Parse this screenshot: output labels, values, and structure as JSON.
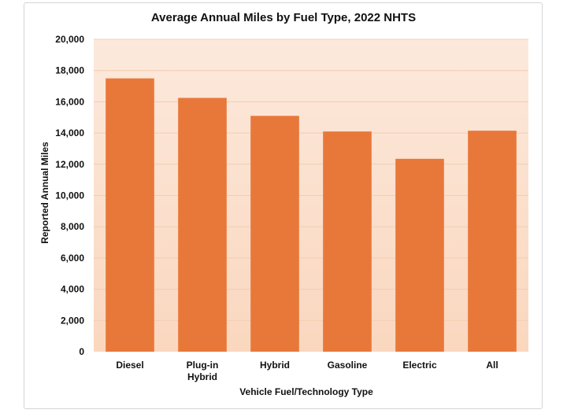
{
  "chart_data": {
    "type": "bar",
    "title": "Average Annual Miles by Fuel Type, 2022 NHTS",
    "xlabel": "Vehicle Fuel/Technology Type",
    "ylabel": "Reported Annual Miles",
    "categories": [
      [
        "Diesel"
      ],
      [
        "Plug-in",
        "Hybrid"
      ],
      [
        "Hybrid"
      ],
      [
        "Gasoline"
      ],
      [
        "Electric"
      ],
      [
        "All"
      ]
    ],
    "values": [
      17500,
      16250,
      15100,
      14100,
      12350,
      14150
    ],
    "ylim": [
      0,
      20000
    ],
    "yticks": [
      0,
      2000,
      4000,
      6000,
      8000,
      10000,
      12000,
      14000,
      16000,
      18000,
      20000
    ],
    "ytick_labels": [
      "0",
      "2,000",
      "4,000",
      "6,000",
      "8,000",
      "10,000",
      "12,000",
      "14,000",
      "16,000",
      "18,000",
      "20,000"
    ],
    "grid": true,
    "colors": {
      "bar": "#e8783a",
      "plot_bg_top": "#fce9dc",
      "plot_bg_bottom": "#fad7bf",
      "grid": "#f2cdb2"
    }
  }
}
